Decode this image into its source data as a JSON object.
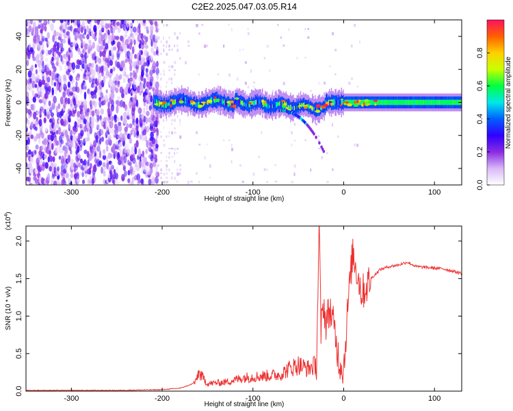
{
  "figure": {
    "title": "C2E2.2025.047.03.05.R14"
  },
  "chart_data": [
    {
      "type": "heatmap",
      "xlabel": "Height of straight line (km)",
      "ylabel": "Frequency (Hz)",
      "xlim": [
        -350,
        130
      ],
      "ylim": [
        -50,
        50
      ],
      "xticks": [
        -300,
        -200,
        -100,
        0,
        100
      ],
      "yticks": [
        -40,
        -20,
        0,
        20,
        40
      ],
      "colorbar": {
        "label": "Normalized spectral amplitude",
        "range": [
          0.0,
          1.0
        ],
        "ticks": [
          "0.0",
          "0.2",
          "0.4",
          "0.6",
          "0.8"
        ],
        "colormap": [
          "#ffffff",
          "#d8b8f8",
          "#8a2be2",
          "#3000ff",
          "#0060ff",
          "#00e8e8",
          "#00ff40",
          "#c8ff00",
          "#ffd000",
          "#ff6000",
          "#ff1060"
        ]
      },
      "structure": [
        {
          "region": "noise",
          "x_range": [
            -350,
            -205
          ],
          "freq_range": [
            -50,
            50
          ],
          "amplitude": 0.12
        },
        {
          "region": "weak_scatter",
          "x_range": [
            -205,
            -180
          ],
          "freq_range": [
            -50,
            50
          ],
          "amplitude": 0.05
        },
        {
          "region": "signal",
          "x_range": [
            -210,
            130
          ],
          "center_freq_hz": 0,
          "width_hz": 6,
          "amplitude": 0.6
        },
        {
          "region": "signal_tail",
          "x_range": [
            -70,
            -20
          ],
          "center_freq_hz": [
            -5,
            -32
          ],
          "amplitude": 0.5
        }
      ]
    },
    {
      "type": "line",
      "xlabel": "Height of straight line (km)",
      "ylabel": "SNR (10 * v/v)",
      "y_scale_label": "(x10",
      "y_scale_exponent": "4",
      "xlim": [
        -350,
        130
      ],
      "ylim": [
        0.0,
        2.2
      ],
      "xticks": [
        -300,
        -200,
        -100,
        0,
        100
      ],
      "yticks": [
        "0.0",
        "0.5",
        "1.0",
        "1.5",
        "2.0"
      ],
      "series": [
        {
          "color": "#ee3030",
          "x": [
            -350,
            -300,
            -250,
            -200,
            -180,
            -170,
            -163,
            -160,
            -150,
            -130,
            -110,
            -90,
            -70,
            -60,
            -50,
            -40,
            -30,
            -27,
            -25,
            -22,
            -20,
            -15,
            -10,
            -5,
            0,
            5,
            10,
            20,
            30,
            40,
            50,
            60,
            70,
            80,
            90,
            100,
            110,
            120,
            130
          ],
          "values": [
            0.01,
            0.01,
            0.01,
            0.02,
            0.04,
            0.08,
            0.12,
            0.25,
            0.1,
            0.12,
            0.18,
            0.2,
            0.22,
            0.3,
            0.35,
            0.3,
            0.35,
            2.2,
            0.8,
            1.2,
            0.9,
            1.1,
            0.8,
            0.4,
            0.3,
            1.2,
            1.85,
            1.3,
            1.5,
            1.62,
            1.66,
            1.68,
            1.72,
            1.66,
            1.65,
            1.64,
            1.63,
            1.6,
            1.57
          ]
        }
      ]
    }
  ]
}
